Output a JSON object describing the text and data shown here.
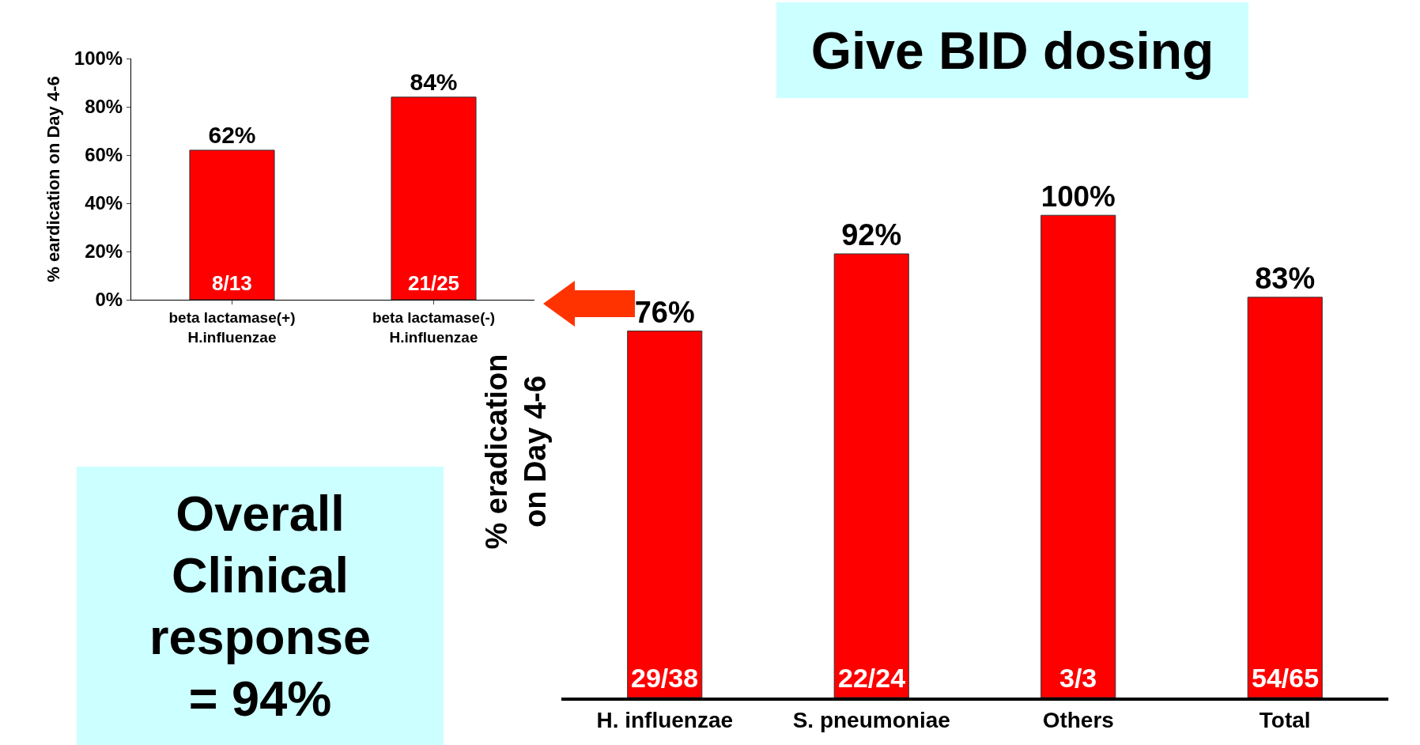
{
  "chart_data": [
    {
      "type": "bar",
      "ylabel": "% eardication on Day 4-6",
      "categories": [
        "beta lactamase(+)\nH.influenzae",
        "beta lactamase(-)\nH.influenzae"
      ],
      "values": [
        62,
        84
      ],
      "color": "#ff0000",
      "value_labels": [
        "62%",
        "84%"
      ],
      "ylim": [
        0,
        100
      ],
      "yticks": [
        {
          "value": 0,
          "label": "0%"
        },
        {
          "value": 20,
          "label": "20%"
        },
        {
          "value": 40,
          "label": "40%"
        },
        {
          "value": 60,
          "label": "60%"
        },
        {
          "value": 80,
          "label": "80%"
        },
        {
          "value": 100,
          "label": "100%"
        }
      ],
      "annotations": [
        {
          "text": "8/13",
          "x": "beta lactamase(+)\nH.influenzae",
          "y": 0
        },
        {
          "text": "21/25",
          "x": "beta lactamase(-)\nH.influenzae",
          "y": 0
        }
      ],
      "grid": false
    },
    {
      "type": "bar",
      "title": "Give BID dosing",
      "ylabel": "% eradication\non Day 4-6",
      "categories": [
        "H. influenzae",
        "S. pneumoniae",
        "Others",
        "Total"
      ],
      "values": [
        76,
        92,
        100,
        83
      ],
      "color": "#ff0000",
      "value_labels": [
        "76%",
        "92%",
        "100%",
        "83%"
      ],
      "annotations": [
        {
          "text": "29/38",
          "x": "H. influenzae",
          "y": 0
        },
        {
          "text": "22/24",
          "x": "S. pneumoniae",
          "y": 0
        },
        {
          "text": "3/3",
          "x": "Others",
          "y": 0
        },
        {
          "text": "54/65",
          "x": "Total",
          "y": 0
        }
      ],
      "grid": false
    },
    {
      "type": "other",
      "annotations": [
        "Overall Clinical response = 94%"
      ]
    }
  ]
}
